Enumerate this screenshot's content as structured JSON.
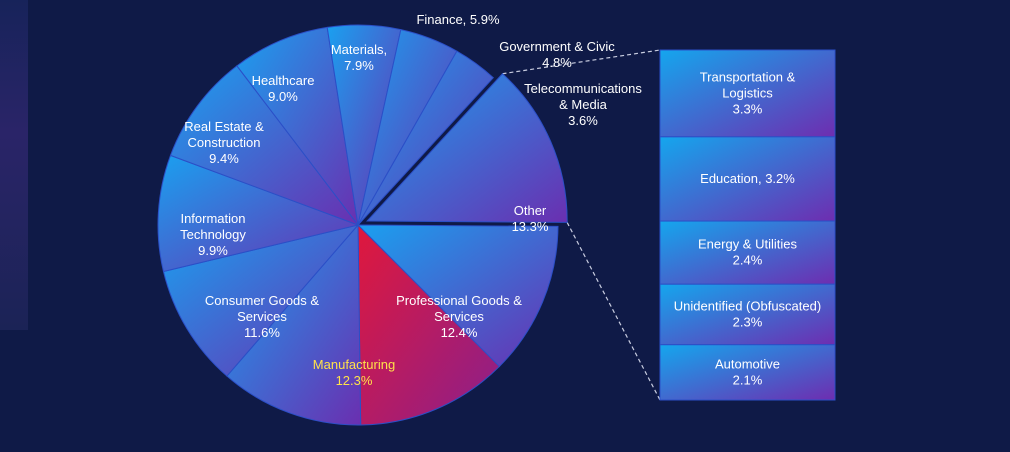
{
  "colors": {
    "background": "#0f1a47",
    "slice_start": "#1aa0f0",
    "slice_end": "#6a2fb0",
    "highlight_start": "#e0183c",
    "highlight_end": "#8a1f8c",
    "label": "#ffffff",
    "highlight_label": "#ffe14a",
    "connector": "#c9cde0"
  },
  "chart_data": {
    "type": "pie",
    "variant": "bar-of-pie",
    "unit": "%",
    "pie_slices": [
      {
        "label": "Manufacturing",
        "value": 12.3,
        "highlight": true
      },
      {
        "label": "Consumer Goods & Services",
        "value": 11.6
      },
      {
        "label": "Information Technology",
        "value": 9.9
      },
      {
        "label": "Real Estate & Construction",
        "value": 9.4
      },
      {
        "label": "Healthcare",
        "value": 9.0
      },
      {
        "label": "Materials,",
        "value": 7.9
      },
      {
        "label": "Finance, 5.9%",
        "value": 5.9
      },
      {
        "label": "Government & Civic",
        "value": 4.8
      },
      {
        "label": "Telecommunications & Media",
        "value": 3.6
      },
      {
        "label": "Other",
        "value": 13.3,
        "exploded": true
      },
      {
        "label": "Professional Goods & Services",
        "value": 12.4
      }
    ],
    "other_breakdown": [
      {
        "label": "Transportation & Logistics",
        "value": 3.3
      },
      {
        "label": "Education, 3.2%",
        "value": 3.2
      },
      {
        "label": "Energy & Utilities",
        "value": 2.4
      },
      {
        "label": "Unidentified (Obfuscated)",
        "value": 2.3
      },
      {
        "label": "Automotive",
        "value": 2.1
      }
    ]
  }
}
